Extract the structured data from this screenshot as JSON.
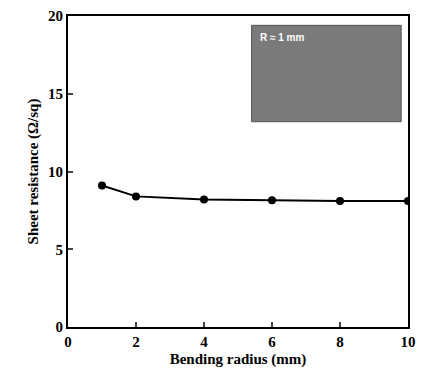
{
  "chart_data": {
    "type": "line",
    "x_label": "Bending radius (mm)",
    "y_label": "Sheet resistance (Ω/sq)",
    "x": [
      1,
      2,
      4,
      6,
      8,
      10
    ],
    "values": [
      9.1,
      8.4,
      8.2,
      8.15,
      8.1,
      8.1
    ],
    "color": "#000000",
    "marker": "circle",
    "xlim": [
      0,
      10
    ],
    "xticks": [
      0,
      2,
      4,
      6,
      8,
      10
    ],
    "ylim": [
      0,
      20
    ],
    "yticks": [
      0,
      5,
      10,
      15,
      20
    ],
    "grid": false,
    "annotations": [
      {
        "text": "R ≈ 1 mm"
      }
    ]
  }
}
